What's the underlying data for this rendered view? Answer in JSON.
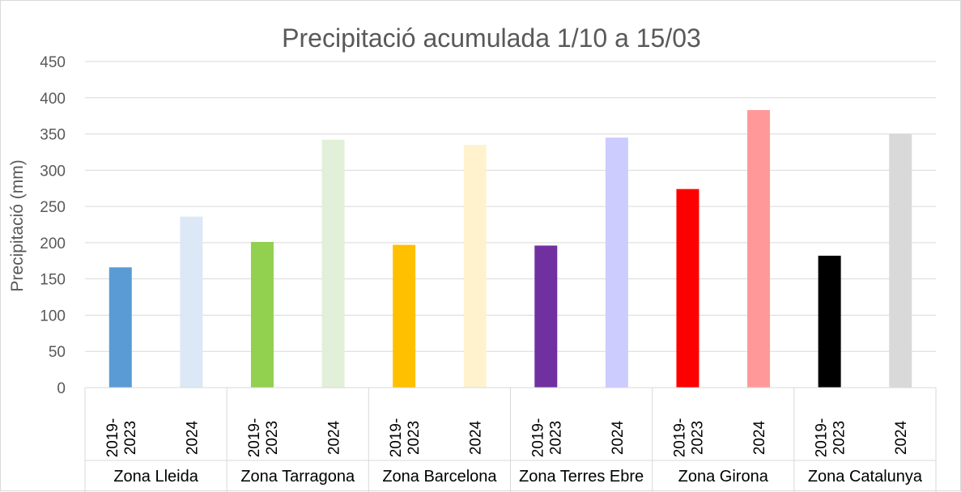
{
  "chart_data": {
    "type": "bar",
    "title": "Precipitació acumulada 1/10 a 15/03",
    "xlabel": "",
    "ylabel": "Precipitació (mm)",
    "ylim": [
      0,
      450
    ],
    "yticks": [
      0,
      50,
      100,
      150,
      200,
      250,
      300,
      350,
      400,
      450
    ],
    "grid": true,
    "legend": "none",
    "groups": [
      {
        "name": "Zona Lleida",
        "bars": [
          {
            "label": "2019-2023",
            "label_lines": [
              "2019-",
              "2023"
            ],
            "value": 166,
            "color": "#5b9bd5"
          },
          {
            "label": "2024",
            "label_lines": [
              "2024"
            ],
            "value": 236,
            "color": "#dde8f6"
          }
        ]
      },
      {
        "name": "Zona Tarragona",
        "bars": [
          {
            "label": "2019-2023",
            "label_lines": [
              "2019-",
              "2023"
            ],
            "value": 201,
            "color": "#92d050"
          },
          {
            "label": "2024",
            "label_lines": [
              "2024"
            ],
            "value": 342,
            "color": "#e2efd9"
          }
        ]
      },
      {
        "name": "Zona Barcelona",
        "bars": [
          {
            "label": "2019-2023",
            "label_lines": [
              "2019-",
              "2023"
            ],
            "value": 197,
            "color": "#ffc000"
          },
          {
            "label": "2024",
            "label_lines": [
              "2024"
            ],
            "value": 335,
            "color": "#fff2cc"
          }
        ]
      },
      {
        "name": "Zona Terres Ebre",
        "bars": [
          {
            "label": "2019-2023",
            "label_lines": [
              "2019-",
              "2023"
            ],
            "value": 196,
            "color": "#7030a0"
          },
          {
            "label": "2024",
            "label_lines": [
              "2024"
            ],
            "value": 345,
            "color": "#ccccff"
          }
        ]
      },
      {
        "name": "Zona Girona",
        "bars": [
          {
            "label": "2019-2023",
            "label_lines": [
              "2019-",
              "2023"
            ],
            "value": 274,
            "color": "#ff0000"
          },
          {
            "label": "2024",
            "label_lines": [
              "2024"
            ],
            "value": 383,
            "color": "#ff9999"
          }
        ]
      },
      {
        "name": "Zona Catalunya",
        "bars": [
          {
            "label": "2019-2023",
            "label_lines": [
              "2019-",
              "2023"
            ],
            "value": 182,
            "color": "#000000"
          },
          {
            "label": "2024",
            "label_lines": [
              "2024"
            ],
            "value": 350,
            "color": "#d9d9d9"
          }
        ]
      }
    ]
  }
}
